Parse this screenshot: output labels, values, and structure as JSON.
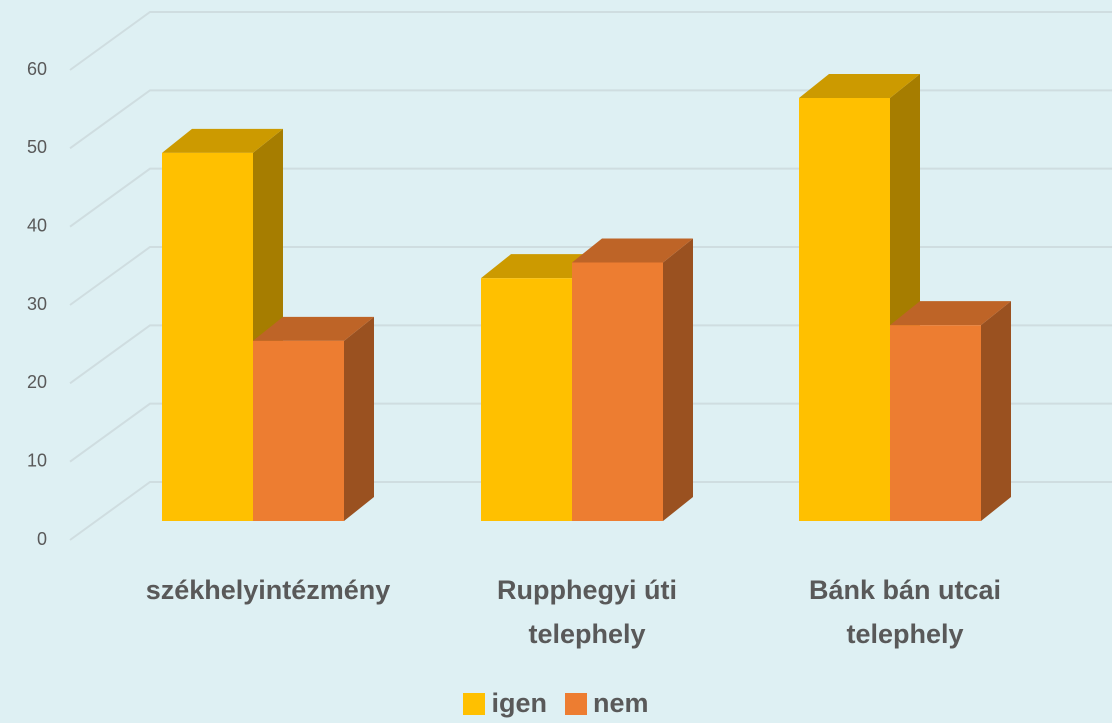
{
  "chart_data": {
    "type": "bar3d",
    "categories": [
      "székhelyintézmény",
      "Rupphegyi úti telephely",
      "Bánk bán utcai telephely"
    ],
    "series": [
      {
        "name": "igen",
        "color": "#ffc000",
        "values": [
          47,
          31,
          54
        ]
      },
      {
        "name": "nem",
        "color": "#ed7d31",
        "values": [
          23,
          33,
          25
        ]
      }
    ],
    "ylim": [
      0,
      60
    ],
    "yticks": [
      0,
      10,
      20,
      30,
      40,
      50,
      60
    ],
    "grid": true,
    "legend": "bottom"
  }
}
